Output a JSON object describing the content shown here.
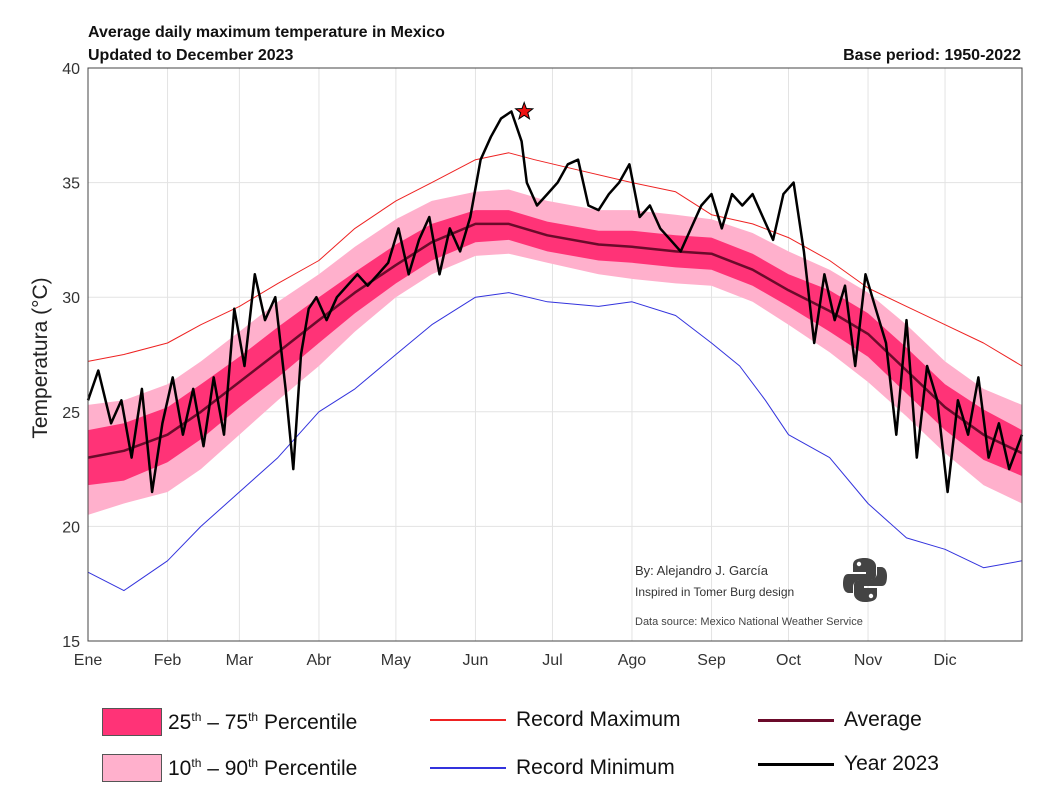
{
  "header": {
    "title": "Average daily maximum temperature in Mexico",
    "subtitle": "Updated to December 2023",
    "base_period": "Base period: 1950-2022"
  },
  "credits": {
    "author": "By: Alejandro J. García",
    "inspired": "Inspired in Tomer Burg design",
    "source": "Data source: Mexico National Weather Service"
  },
  "colors": {
    "band_25_75": "#ff3377",
    "band_10_90": "#ffb0cc",
    "record_max": "#ee2222",
    "record_min": "#3333dd",
    "average": "#6b0a2a",
    "year": "#000000"
  },
  "legend": {
    "p25_75": {
      "a": "25",
      "b": "th",
      "c": " – ",
      "d": "75",
      "e": "th",
      "f": " Percentile"
    },
    "p10_90": {
      "a": "10",
      "b": "th",
      "c": " – ",
      "d": "90",
      "e": "th",
      "f": " Percentile"
    },
    "record_max": "Record Maximum",
    "record_min": "Record Minimum",
    "average": "Average",
    "year": "Year 2023"
  },
  "chart_data": {
    "type": "line",
    "ylabel": "Temperatura (°C)",
    "xlabel": "",
    "ylim": [
      15,
      40
    ],
    "xlim": [
      1,
      365
    ],
    "yticks": [
      15,
      20,
      25,
      30,
      35,
      40
    ],
    "month_ticks": [
      {
        "label": "Ene",
        "day": 1
      },
      {
        "label": "Feb",
        "day": 32
      },
      {
        "label": "Mar",
        "day": 60
      },
      {
        "label": "Abr",
        "day": 91
      },
      {
        "label": "May",
        "day": 121
      },
      {
        "label": "Jun",
        "day": 152
      },
      {
        "label": "Jul",
        "day": 182
      },
      {
        "label": "Ago",
        "day": 213
      },
      {
        "label": "Sep",
        "day": 244
      },
      {
        "label": "Oct",
        "day": 274
      },
      {
        "label": "Nov",
        "day": 305
      },
      {
        "label": "Dic",
        "day": 335
      }
    ],
    "grid": true,
    "record_marker": {
      "day": 171,
      "value": 38.1
    },
    "series": [
      {
        "name": "Record Maximum",
        "x": [
          1,
          15,
          32,
          45,
          60,
          75,
          91,
          105,
          121,
          135,
          152,
          165,
          175,
          190,
          213,
          230,
          244,
          260,
          274,
          290,
          305,
          320,
          335,
          350,
          365
        ],
        "values": [
          27.2,
          27.5,
          28.0,
          28.8,
          29.6,
          30.6,
          31.6,
          33.0,
          34.2,
          35.0,
          36.0,
          36.3,
          36.0,
          35.6,
          35.0,
          34.6,
          33.6,
          33.2,
          32.6,
          31.6,
          30.4,
          29.6,
          28.8,
          28.0,
          27.0
        ]
      },
      {
        "name": "Record Minimum",
        "x": [
          1,
          15,
          32,
          45,
          60,
          75,
          91,
          105,
          121,
          135,
          152,
          165,
          180,
          200,
          213,
          230,
          244,
          255,
          265,
          274,
          290,
          305,
          320,
          335,
          350,
          365
        ],
        "values": [
          18.0,
          17.2,
          18.5,
          20.0,
          21.5,
          23.0,
          25.0,
          26.0,
          27.5,
          28.8,
          30.0,
          30.2,
          29.8,
          29.6,
          29.8,
          29.2,
          28.0,
          27.0,
          25.5,
          24.0,
          23.0,
          21.0,
          19.5,
          19.0,
          18.2,
          18.5
        ]
      },
      {
        "name": "Average",
        "x": [
          1,
          15,
          32,
          45,
          60,
          75,
          91,
          105,
          121,
          135,
          152,
          165,
          180,
          200,
          213,
          230,
          244,
          260,
          274,
          290,
          305,
          320,
          335,
          350,
          365
        ],
        "values": [
          23.0,
          23.3,
          24.0,
          25.0,
          26.3,
          27.6,
          29.0,
          30.2,
          31.4,
          32.4,
          33.2,
          33.2,
          32.7,
          32.3,
          32.2,
          32.0,
          31.9,
          31.2,
          30.3,
          29.4,
          28.4,
          26.8,
          25.2,
          24.0,
          23.2
        ]
      },
      {
        "name": "Year 2023",
        "x": [
          1,
          5,
          10,
          14,
          18,
          22,
          26,
          30,
          34,
          38,
          42,
          46,
          50,
          54,
          58,
          62,
          66,
          70,
          74,
          78,
          81,
          84,
          87,
          90,
          94,
          98,
          102,
          106,
          110,
          114,
          118,
          122,
          126,
          130,
          134,
          138,
          142,
          146,
          150,
          154,
          158,
          162,
          166,
          170,
          172,
          176,
          180,
          184,
          188,
          192,
          196,
          200,
          204,
          208,
          212,
          216,
          220,
          224,
          228,
          232,
          236,
          240,
          244,
          248,
          252,
          256,
          260,
          264,
          268,
          272,
          276,
          280,
          284,
          288,
          292,
          296,
          300,
          304,
          308,
          312,
          316,
          320,
          324,
          328,
          332,
          336,
          340,
          344,
          348,
          352,
          356,
          360,
          365
        ],
        "values": [
          25.5,
          26.8,
          24.5,
          25.5,
          23.0,
          26.0,
          21.5,
          24.5,
          26.5,
          24.0,
          26.0,
          23.5,
          26.5,
          24.0,
          29.5,
          27.0,
          31.0,
          29.0,
          30.0,
          26.0,
          22.5,
          27.5,
          29.5,
          30.0,
          29.0,
          30.0,
          30.5,
          31.0,
          30.5,
          31.0,
          31.5,
          33.0,
          31.0,
          32.5,
          33.5,
          31.0,
          33.0,
          32.0,
          33.5,
          36.0,
          37.0,
          37.8,
          38.1,
          36.8,
          35.0,
          34.0,
          34.5,
          35.0,
          35.8,
          36.0,
          34.0,
          33.8,
          34.5,
          35.0,
          35.8,
          33.5,
          34.0,
          33.0,
          32.5,
          32.0,
          33.0,
          34.0,
          34.5,
          33.0,
          34.5,
          34.0,
          34.5,
          33.5,
          32.5,
          34.5,
          35.0,
          32.0,
          28.0,
          31.0,
          29.0,
          30.5,
          27.0,
          31.0,
          29.5,
          28.0,
          24.0,
          29.0,
          23.0,
          27.0,
          25.5,
          21.5,
          25.5,
          24.0,
          26.5,
          23.0,
          24.5,
          22.5,
          24.0
        ]
      }
    ],
    "bands": [
      {
        "name": "10th – 90th Percentile",
        "x": [
          1,
          15,
          32,
          45,
          60,
          75,
          91,
          105,
          121,
          135,
          152,
          165,
          180,
          200,
          213,
          230,
          244,
          260,
          274,
          290,
          305,
          320,
          335,
          350,
          365
        ],
        "low": [
          20.5,
          21.0,
          21.5,
          22.5,
          24.0,
          25.5,
          27.0,
          28.5,
          30.0,
          31.0,
          31.8,
          31.9,
          31.5,
          31.0,
          30.8,
          30.6,
          30.5,
          29.8,
          28.8,
          27.6,
          26.3,
          24.8,
          23.2,
          21.8,
          21.0
        ],
        "high": [
          25.3,
          25.5,
          26.2,
          27.2,
          28.5,
          29.8,
          31.0,
          32.2,
          33.4,
          34.2,
          34.6,
          34.7,
          34.2,
          33.8,
          33.8,
          33.6,
          33.4,
          32.8,
          32.0,
          31.2,
          30.2,
          28.8,
          27.2,
          26.0,
          25.3
        ]
      },
      {
        "name": "25th – 75th Percentile",
        "x": [
          1,
          15,
          32,
          45,
          60,
          75,
          91,
          105,
          121,
          135,
          152,
          165,
          180,
          200,
          213,
          230,
          244,
          260,
          274,
          290,
          305,
          320,
          335,
          350,
          365
        ],
        "low": [
          21.8,
          22.0,
          22.8,
          23.8,
          25.2,
          26.5,
          28.0,
          29.3,
          30.6,
          31.6,
          32.4,
          32.5,
          32.0,
          31.6,
          31.5,
          31.3,
          31.2,
          30.5,
          29.6,
          28.5,
          27.4,
          25.8,
          24.2,
          22.9,
          22.2
        ],
        "high": [
          24.2,
          24.5,
          25.2,
          26.2,
          27.4,
          28.7,
          30.0,
          31.1,
          32.3,
          33.2,
          33.8,
          33.8,
          33.3,
          32.9,
          32.9,
          32.7,
          32.6,
          31.9,
          31.0,
          30.3,
          29.3,
          27.8,
          26.2,
          25.1,
          24.2
        ]
      }
    ]
  }
}
